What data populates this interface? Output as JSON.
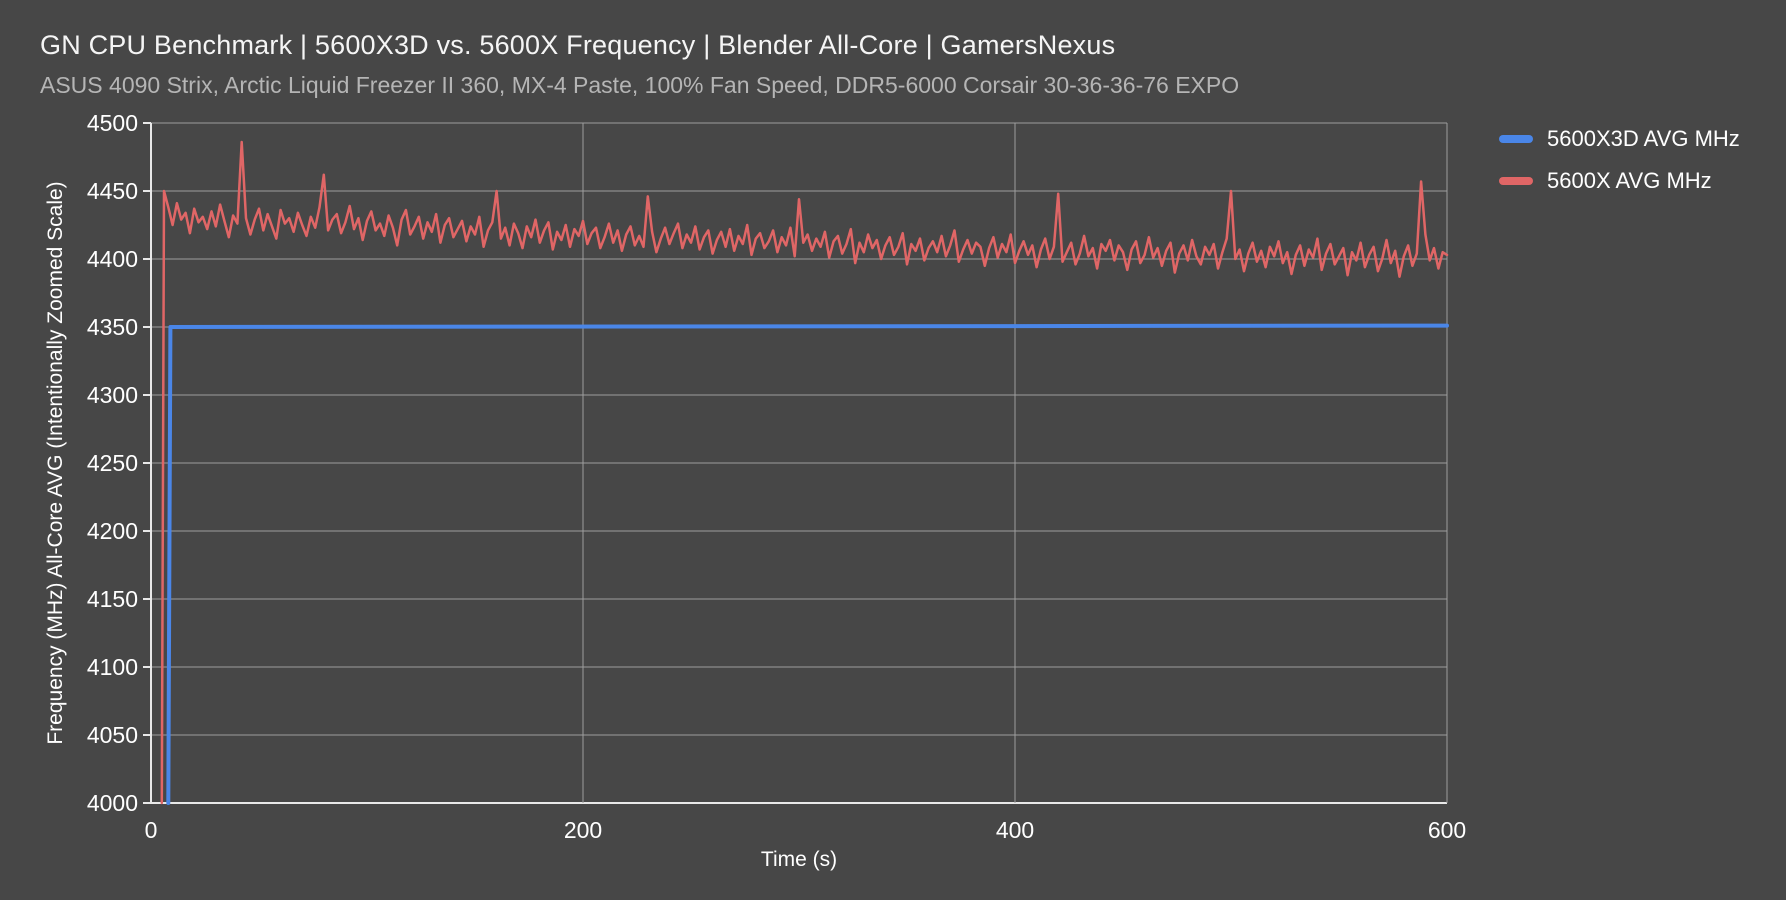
{
  "chart_data": {
    "type": "line",
    "title": "GN CPU Benchmark | 5600X3D vs. 5600X Frequency | Blender All-Core | GamersNexus",
    "subtitle": "ASUS 4090 Strix, Arctic Liquid Freezer II 360, MX-4 Paste, 100% Fan Speed, DDR5-6000 Corsair 30-36-36-76 EXPO",
    "xlabel": "Time (s)",
    "ylabel": "Frequency (MHz) All-Core AVG (Intentionally Zoomed Scale)",
    "xlim": [
      0,
      600
    ],
    "ylim": [
      4000,
      4500
    ],
    "x_ticks": [
      0,
      200,
      400,
      600
    ],
    "y_ticks": [
      4000,
      4050,
      4100,
      4150,
      4200,
      4250,
      4300,
      4350,
      4400,
      4450,
      4500
    ],
    "grid": true,
    "legend_position": "top-right",
    "colors": {
      "background": "#474747",
      "grid": "#9d9d9d",
      "axis": "#e9e9e9",
      "tick_text": "#ffffff",
      "title": "#f5f5f5",
      "subtitle": "#b5b5b5"
    },
    "series": [
      {
        "name": "5600X3D AVG MHz",
        "color": "#4a86e8",
        "stroke_width": 4,
        "points": [
          [
            8,
            4000
          ],
          [
            9,
            4350
          ],
          [
            600,
            4351
          ]
        ]
      },
      {
        "name": "5600X AVG MHz",
        "color": "#e06666",
        "stroke_width": 2.5,
        "prefix": [
          [
            5,
            4000
          ]
        ],
        "t0": 6,
        "dt": 2,
        "values": [
          4450,
          4438,
          4425,
          4441,
          4429,
          4434,
          4419,
          4437,
          4427,
          4431,
          4422,
          4435,
          4424,
          4440,
          4428,
          4416,
          4432,
          4426,
          4486,
          4430,
          4418,
          4429,
          4437,
          4421,
          4433,
          4424,
          4415,
          4436,
          4426,
          4430,
          4420,
          4434,
          4425,
          4417,
          4431,
          4423,
          4438,
          4462,
          4421,
          4429,
          4433,
          4419,
          4427,
          4439,
          4422,
          4430,
          4414,
          4428,
          4435,
          4421,
          4426,
          4417,
          4432,
          4423,
          4410,
          4429,
          4436,
          4418,
          4424,
          4431,
          4415,
          4427,
          4420,
          4433,
          4412,
          4425,
          4430,
          4416,
          4422,
          4428,
          4413,
          4424,
          4418,
          4431,
          4409,
          4421,
          4427,
          4450,
          4415,
          4423,
          4410,
          4426,
          4419,
          4408,
          4424,
          4416,
          4429,
          4412,
          4421,
          4427,
          4407,
          4420,
          4414,
          4425,
          4409,
          4422,
          4417,
          4428,
          4411,
          4419,
          4423,
          4408,
          4416,
          4426,
          4412,
          4421,
          4406,
          4418,
          4424,
          4410,
          4417,
          4409,
          4446,
          4420,
          4405,
          4415,
          4423,
          4411,
          4419,
          4426,
          4408,
          4418,
          4412,
          4424,
          4407,
          4416,
          4421,
          4404,
          4414,
          4420,
          4409,
          4422,
          4406,
          4417,
          4411,
          4425,
          4403,
          4415,
          4419,
          4408,
          4413,
          4421,
          4405,
          4416,
          4410,
          4423,
          4402,
          4444,
          4412,
          4418,
          4406,
          4415,
          4409,
          4420,
          4401,
          4413,
          4417,
          4404,
          4411,
          4422,
          4397,
          4412,
          4405,
          4418,
          4408,
          4414,
          4400,
          4410,
          4416,
          4403,
          4409,
          4419,
          4396,
          4411,
          4406,
          4415,
          4399,
          4408,
          4413,
          4405,
          4417,
          4402,
          4410,
          4421,
          4398,
          4407,
          4414,
          4404,
          4412,
          4409,
          4395,
          4408,
          4416,
          4401,
          4411,
          4405,
          4418,
          4397,
          4406,
          4413,
          4403,
          4410,
          4394,
          4407,
          4415,
          4400,
          4409,
          4448,
          4398,
          4405,
          4412,
          4396,
          4404,
          4417,
          4402,
          4408,
          4393,
          4411,
          4406,
          4414,
          4399,
          4410,
          4405,
          4392,
          4407,
          4413,
          4397,
          4403,
          4416,
          4401,
          4408,
          4395,
          4406,
          4412,
          4390,
          4404,
          4410,
          4399,
          4414,
          4402,
          4396,
          4409,
          4403,
          4411,
          4393,
          4405,
          4415,
          4450,
          4400,
          4407,
          4391,
          4404,
          4412,
          4398,
          4406,
          4394,
          4409,
          4402,
          4413,
          4397,
          4405,
          4389,
          4403,
          4410,
          4395,
          4407,
          4401,
          4415,
          4392,
          4404,
          4411,
          4396,
          4402,
          4408,
          4388,
          4405,
          4399,
          4412,
          4394,
          4403,
          4409,
          4391,
          4400,
          4414,
          4397,
          4406,
          4387,
          4402,
          4410,
          4395,
          4404,
          4457,
          4418,
          4399,
          4408,
          4393,
          4405,
          4403
        ]
      }
    ]
  }
}
